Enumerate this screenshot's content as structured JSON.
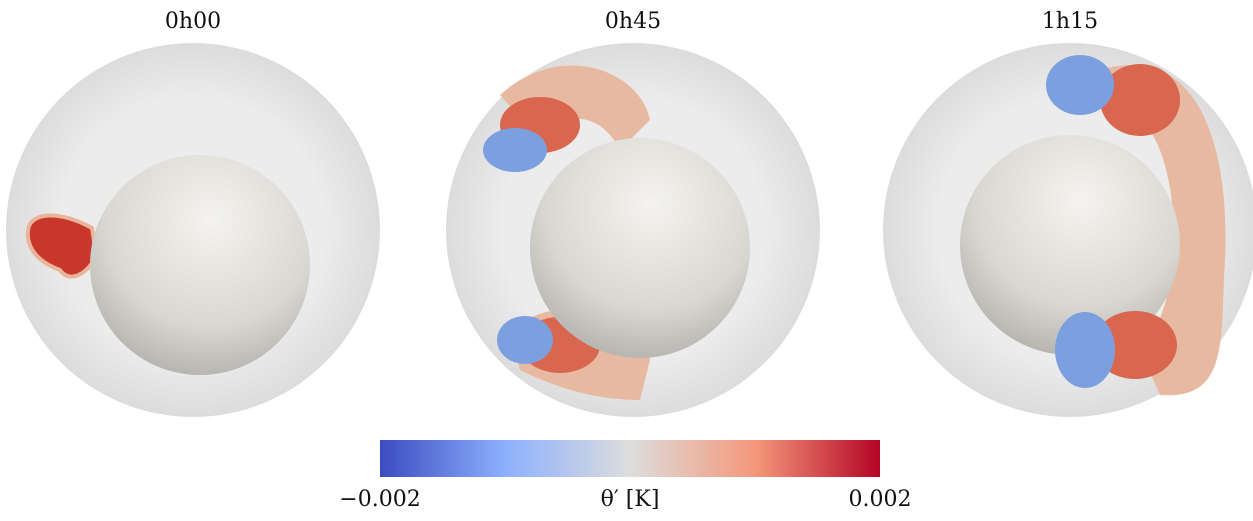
{
  "panels": [
    {
      "title": "0h00"
    },
    {
      "title": "0h45"
    },
    {
      "title": "1h15"
    }
  ],
  "colorbar": {
    "label": "θ′ [K]",
    "lim": [
      -0.002,
      0.002
    ],
    "ticks": [
      {
        "value": -0.002,
        "label": "−0.002"
      },
      {
        "value": 0.002,
        "label": "0.002"
      }
    ]
  }
}
